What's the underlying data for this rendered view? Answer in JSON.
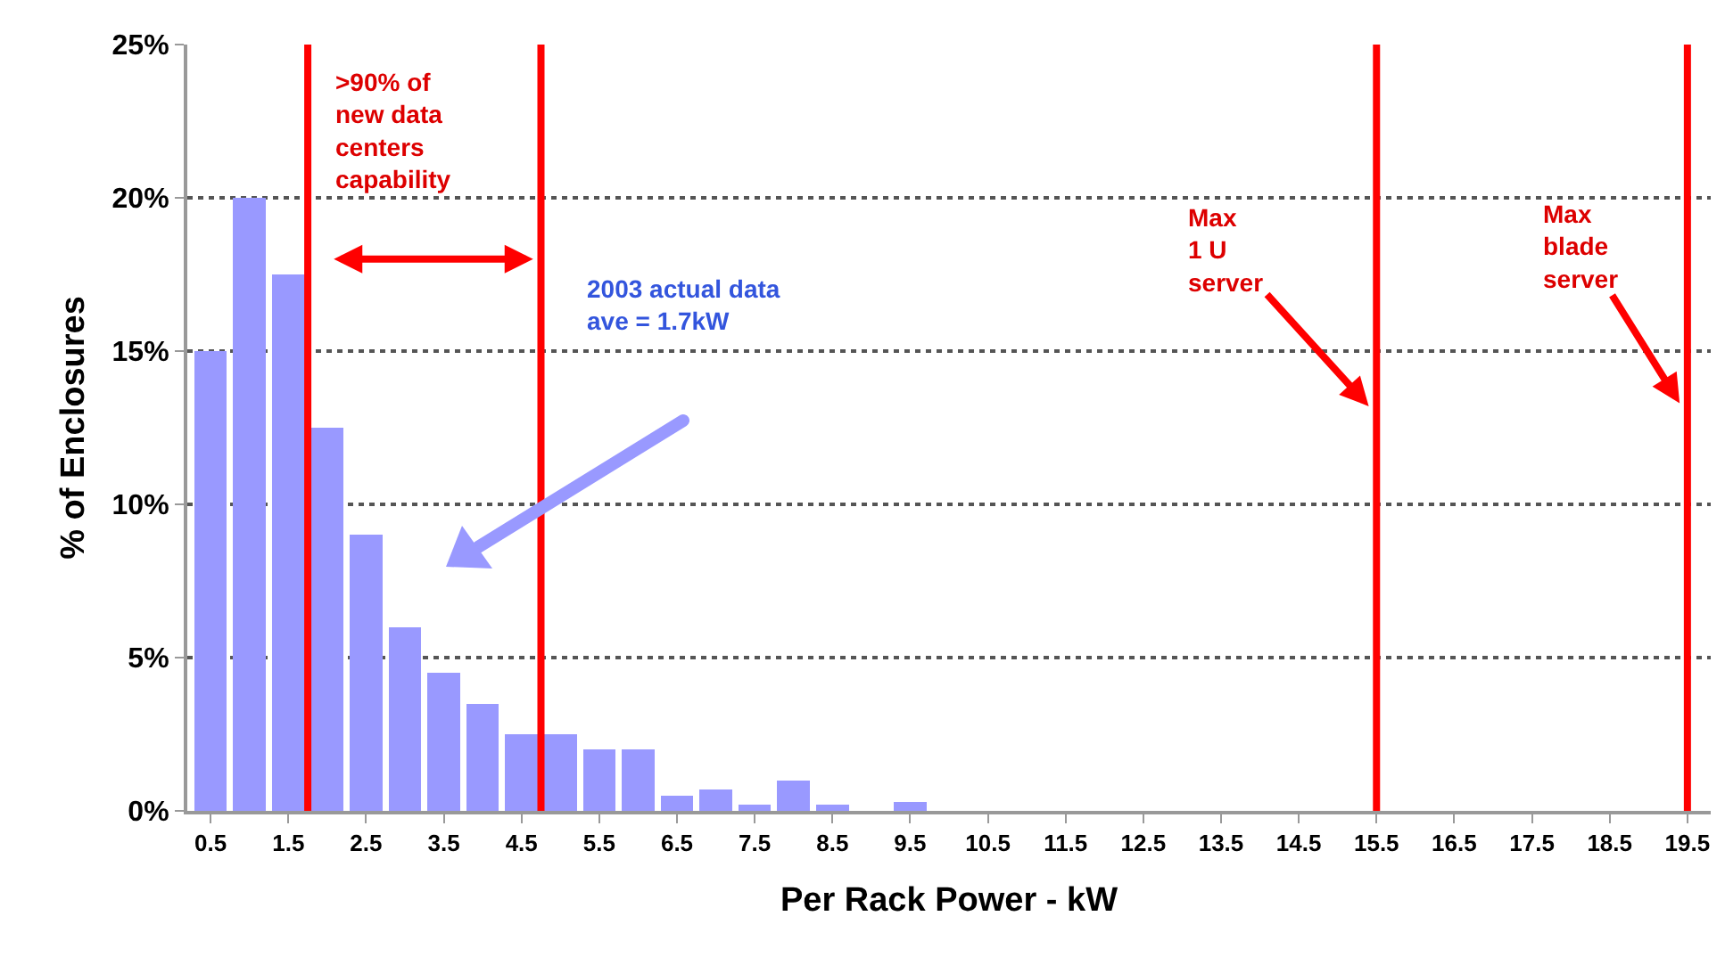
{
  "chart_data": {
    "type": "bar",
    "xlabel": "Per Rack Power - kW",
    "ylabel": "% of Enclosures",
    "x": [
      0.5,
      1,
      1.5,
      2,
      2.5,
      3,
      3.5,
      4,
      4.5,
      5,
      5.5,
      6,
      6.5,
      7,
      7.5,
      8,
      8.5,
      9,
      9.5,
      10,
      10.5,
      11,
      11.5,
      12,
      12.5,
      13,
      13.5,
      14,
      14.5,
      15,
      15.5,
      16,
      16.5,
      17,
      17.5,
      18,
      18.5,
      19,
      19.5
    ],
    "values": [
      15,
      20,
      17.5,
      12.5,
      9,
      6,
      4.5,
      3.5,
      2.5,
      2.5,
      2,
      2,
      0.5,
      0.7,
      0.2,
      1,
      0.2,
      0,
      0.3,
      0,
      0,
      0,
      0,
      0,
      0,
      0,
      0,
      0,
      0,
      0,
      0,
      0,
      0,
      0,
      0,
      0,
      0,
      0,
      0
    ],
    "color": "#9999ff",
    "xlim": [
      0.2,
      19.8
    ],
    "xticks": [
      0.5,
      1.5,
      2.5,
      3.5,
      4.5,
      5.5,
      6.5,
      7.5,
      8.5,
      9.5,
      10.5,
      11.5,
      12.5,
      13.5,
      14.5,
      15.5,
      16.5,
      17.5,
      18.5,
      19.5
    ],
    "ylim": [
      0,
      25
    ],
    "yticks": [
      {
        "value": 0,
        "label": "0%"
      },
      {
        "value": 5,
        "label": "5%"
      },
      {
        "value": 10,
        "label": "10%"
      },
      {
        "value": 15,
        "label": "15%"
      },
      {
        "value": 20,
        "label": "20%"
      },
      {
        "value": 25,
        "label": "25%"
      }
    ],
    "grid": "y",
    "ref_lines": [
      {
        "axis": "x",
        "value": 1.75,
        "color": "#ff0000"
      },
      {
        "axis": "x",
        "value": 4.75,
        "color": "#ff0000"
      },
      {
        "axis": "x",
        "value": 15.5,
        "color": "#ff0000"
      },
      {
        "axis": "x",
        "value": 19.5,
        "color": "#ff0000"
      }
    ],
    "annotations": [
      ">90% of\nnew data\ncenters\ncapability",
      "2003 actual data\nave = 1.7kW",
      {
        "text": "Max\n1 U\nserver",
        "x": 15.4,
        "y": 13.2
      },
      {
        "text": "Max\nblade\nserver",
        "x": 19.4,
        "y": 13.3
      }
    ]
  }
}
